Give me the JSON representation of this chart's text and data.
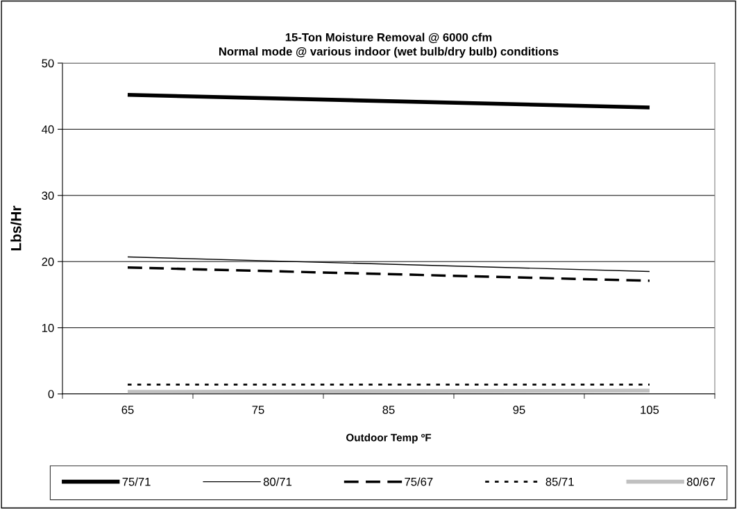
{
  "chart_data": {
    "type": "line",
    "title": "15-Ton Moisture Removal @ 6000 cfm\nNormal mode @ various indoor (wet bulb/dry bulb) conditions",
    "xlabel": "Outdoor Temp ºF",
    "ylabel": "Lbs/Hr",
    "x": [
      65,
      105
    ],
    "series": [
      {
        "name": "75/71",
        "color": "#000000",
        "values": [
          45.2,
          43.3
        ],
        "line_style": "solid"
      },
      {
        "name": "80/71",
        "color": "#000000",
        "values": [
          20.7,
          18.5
        ],
        "line_style": "solid"
      },
      {
        "name": "75/67",
        "color": "#000000",
        "values": [
          19.1,
          17.1
        ],
        "line_style": "dashed"
      },
      {
        "name": "85/71",
        "color": "#000000",
        "values": [
          1.4,
          1.4
        ],
        "line_style": "dotted"
      },
      {
        "name": "80/67",
        "color": "#c0c0c0",
        "values": [
          0.3,
          0.5
        ],
        "line_style": "solid"
      }
    ],
    "xlim": [
      60,
      110
    ],
    "ylim": [
      0,
      50
    ],
    "xticks": [
      {
        "value": 60,
        "label": null
      },
      65,
      {
        "value": 70,
        "label": null
      },
      75,
      {
        "value": 80,
        "label": null
      },
      85,
      {
        "value": 90,
        "label": null
      },
      95,
      {
        "value": 100,
        "label": null
      },
      105,
      {
        "value": 110,
        "label": null
      }
    ],
    "yticks": [
      0,
      10,
      20,
      30,
      40,
      50
    ],
    "grid": "y",
    "legend": "bottom",
    "marker": "none"
  }
}
